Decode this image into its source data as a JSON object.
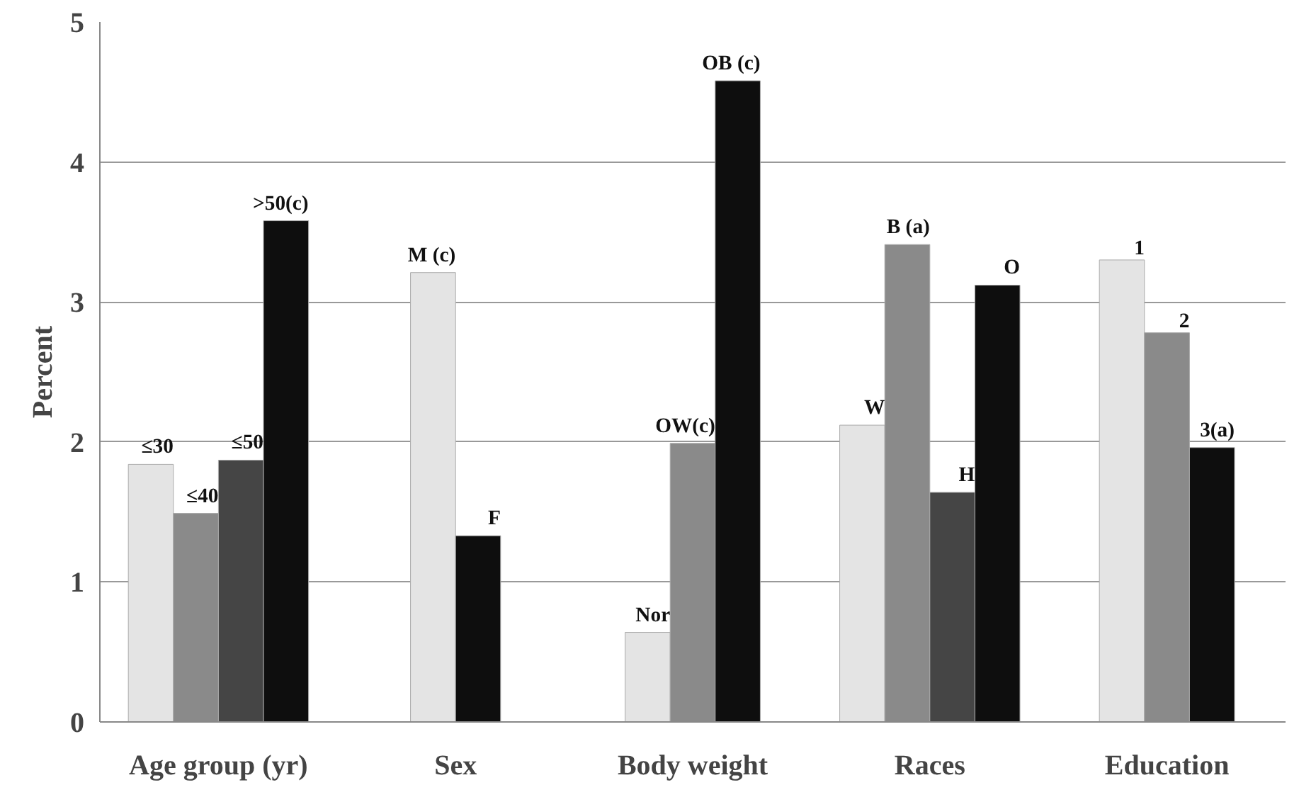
{
  "chart_data": {
    "type": "bar",
    "ylabel": "Percent",
    "categories": [
      "Age group (yr)",
      "Sex",
      "Body weight",
      "Races",
      "Education"
    ],
    "series": [
      {
        "color": "#e4e4e4",
        "values": [
          1.84,
          3.21,
          0.64,
          2.12,
          3.3
        ]
      },
      {
        "color": "#8a8a8a",
        "values": [
          1.49,
          null,
          1.99,
          3.41,
          2.78
        ]
      },
      {
        "color": "#454545",
        "values": [
          1.87,
          null,
          null,
          1.64,
          null
        ]
      },
      {
        "color": "#0e0e0e",
        "values": [
          3.58,
          1.33,
          4.58,
          3.12,
          1.96
        ]
      }
    ],
    "ylim": [
      0,
      5
    ],
    "yticks": [
      0,
      1,
      2,
      3,
      4,
      5
    ],
    "grid": "y",
    "annotations": [
      "≤30",
      "≤40",
      "≤50",
      ">50(c)",
      "M (c)",
      "F",
      "Nor",
      "OW(c)",
      "OB (c)",
      "W",
      "B (a)",
      "H",
      "O",
      "1",
      "2",
      "3(a)"
    ]
  }
}
